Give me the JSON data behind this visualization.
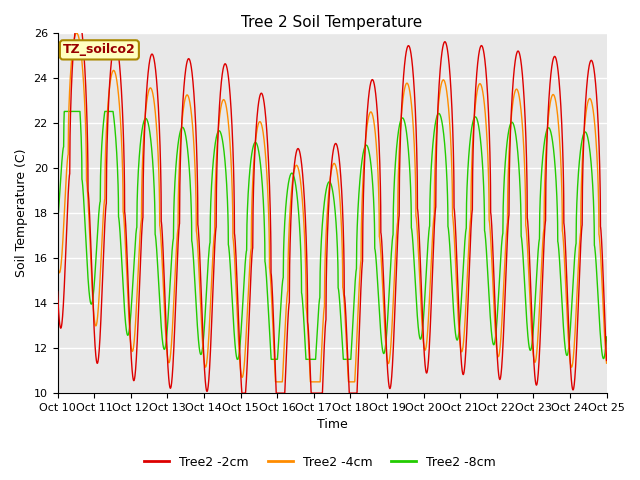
{
  "title": "Tree 2 Soil Temperature",
  "xlabel": "Time",
  "ylabel": "Soil Temperature (C)",
  "annotation": "TZ_soilco2",
  "ylim": [
    10,
    26
  ],
  "xlim": [
    0,
    360
  ],
  "yticks": [
    10,
    12,
    14,
    16,
    18,
    20,
    22,
    24,
    26
  ],
  "xtick_labels": [
    "Oct 10",
    "Oct 11",
    "Oct 12",
    "Oct 13",
    "Oct 14",
    "Oct 15",
    "Oct 16",
    "Oct 17",
    "Oct 18",
    "Oct 19",
    "Oct 20",
    "Oct 21",
    "Oct 22",
    "Oct 23",
    "Oct 24",
    "Oct 25"
  ],
  "xtick_positions": [
    0,
    24,
    48,
    72,
    96,
    120,
    144,
    168,
    192,
    216,
    240,
    264,
    288,
    312,
    336,
    360
  ],
  "line_colors": [
    "#DD0000",
    "#FF8C00",
    "#22CC00"
  ],
  "line_labels": [
    "Tree2 -2cm",
    "Tree2 -4cm",
    "Tree2 -8cm"
  ],
  "line_width": 1.0,
  "bg_color": "#E8E8E8",
  "grid_color": "#FFFFFF",
  "title_fontsize": 11,
  "label_fontsize": 9,
  "tick_fontsize": 8,
  "legend_fontsize": 9,
  "annot_fontsize": 9,
  "annot_color": "#990000",
  "annot_bg": "#FFFFC0",
  "annot_edge": "#AA8800"
}
